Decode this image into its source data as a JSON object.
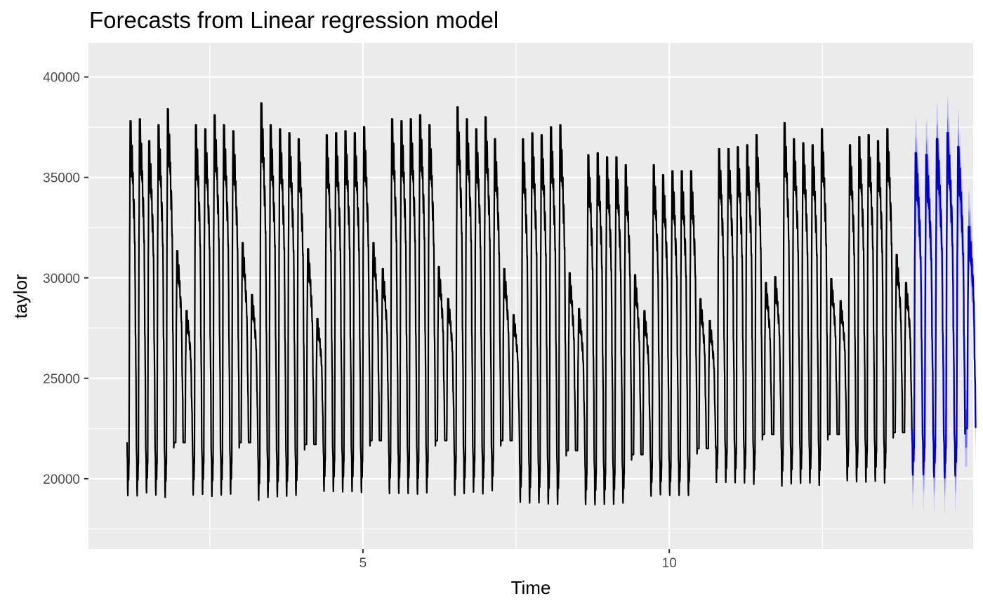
{
  "chart_data": {
    "type": "line",
    "title": "Forecasts from Linear regression model",
    "xlabel": "Time",
    "ylabel": "taylor",
    "xlim": [
      0.52,
      14.96
    ],
    "ylim": [
      16500,
      41700
    ],
    "x_ticks": [
      5,
      10
    ],
    "x_minor_ticks": [
      2.5,
      7.5,
      12.5
    ],
    "y_ticks": [
      20000,
      25000,
      30000,
      35000,
      40000
    ],
    "y_minor_ticks": [
      17500,
      22500,
      27500,
      32500,
      37500
    ],
    "grid": true,
    "legend": "none",
    "series": [
      {
        "role": "observed",
        "color": "#000000",
        "x_start": 1.15,
        "x_end": 13.96,
        "weeks": [
          {
            "day_peaks": [
              37900,
              38000,
              36900,
              37700,
              38500
            ],
            "weekend": [
              31400,
              28400
            ],
            "trough": 19300
          },
          {
            "day_peaks": [
              37700,
              37500,
              38200,
              37700,
              37400
            ],
            "weekend": [
              31800,
              29200
            ],
            "trough": 19300
          },
          {
            "day_peaks": [
              38800,
              37700,
              37500,
              37300,
              37000
            ],
            "weekend": [
              31500,
              28000
            ],
            "trough": 19200
          },
          {
            "day_peaks": [
              37200,
              37300,
              37400,
              37300,
              37600
            ],
            "weekend": [
              31800,
              30500
            ],
            "trough": 19400
          },
          {
            "day_peaks": [
              38000,
              37900,
              38000,
              38200,
              37700
            ],
            "weekend": [
              30600,
              29000
            ],
            "trough": 19400
          },
          {
            "day_peaks": [
              38600,
              38000,
              37500,
              38100,
              37000
            ],
            "weekend": [
              30500,
              28200
            ],
            "trough": 19400
          },
          {
            "day_peaks": [
              37000,
              37300,
              37200,
              37600,
              37700
            ],
            "weekend": [
              30300,
              28500
            ],
            "trough": 18900
          },
          {
            "day_peaks": [
              36200,
              36300,
              36100,
              36100,
              35700
            ],
            "weekend": [
              30200,
              28400
            ],
            "trough": 18700
          },
          {
            "day_peaks": [
              35700,
              35200,
              35400,
              35400,
              35400
            ],
            "weekend": [
              29000,
              27900
            ],
            "trough": 19000
          },
          {
            "day_peaks": [
              36500,
              36500,
              36600,
              36700,
              37200
            ],
            "weekend": [
              29800,
              30100
            ],
            "trough": 19700
          },
          {
            "day_peaks": [
              37800,
              37000,
              36800,
              36700,
              37500
            ],
            "weekend": [
              30000,
              28900
            ],
            "trough": 19700
          },
          {
            "day_peaks": [
              36700,
              37100,
              37200,
              36900,
              37500
            ],
            "weekend": [
              31200,
              29800
            ],
            "trough": 19800
          }
        ]
      },
      {
        "role": "forecast",
        "color": "#0000cc",
        "x_start": 13.96,
        "x_end": 15.0,
        "day_peaks": [
          36300,
          36200,
          37000,
          37300,
          36600
        ],
        "weekend": [
          32600
        ],
        "trough": 20000
      },
      {
        "role": "80% interval",
        "color": "#5b5bf2",
        "width": 1900
      },
      {
        "role": "95% interval",
        "color": "#b3b3f7",
        "width": 3800
      }
    ]
  }
}
